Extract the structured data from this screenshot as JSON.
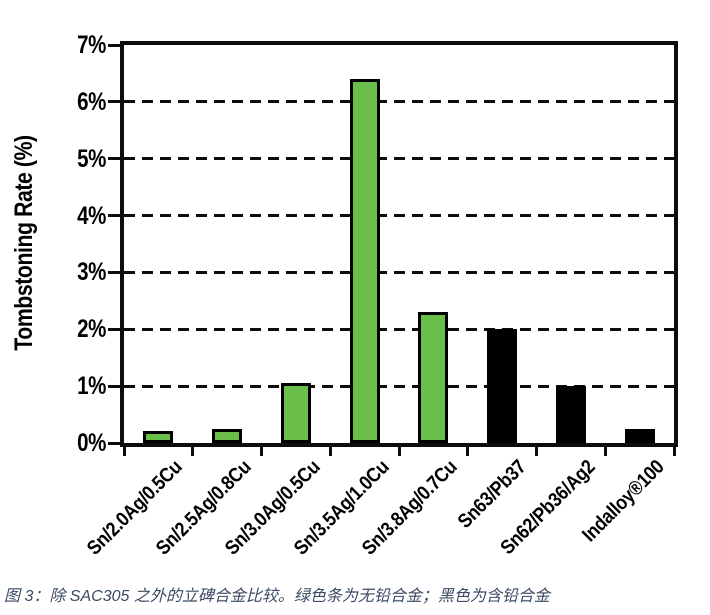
{
  "figure_caption": "图 3：除 SAC305 之外的立碑合金比较。绿色条为无铅合金；黑色为含铅合金",
  "chart_data": {
    "type": "bar",
    "title": "",
    "xlabel": "",
    "ylabel": "Tombstoning Rate (%)",
    "ylim": [
      0,
      7
    ],
    "y_tick_labels": [
      "0%",
      "1%",
      "2%",
      "3%",
      "4%",
      "5%",
      "6%",
      "7%"
    ],
    "grid": "horizontal dashed black lines at each 1% level, solid black frame around plot",
    "legend": "none (color-coded bars; caption explains: green = lead-free alloys, black = leaded alloys)",
    "categories": [
      "Sn/2.0Ag/0.5Cu",
      "Sn/2.5Ag/0.8Cu",
      "Sn/3.0Ag/0.5Cu",
      "Sn/3.5Ag/1.0Cu",
      "Sn/3.8Ag/0.7Cu",
      "Sn63/Pb37",
      "Sn62/Pb36/Ag2",
      "Indalloy®100"
    ],
    "values": [
      0.22,
      0.24,
      1.05,
      6.4,
      2.3,
      2.0,
      1.0,
      0.25
    ],
    "bar_groups": [
      "lead_free",
      "lead_free",
      "lead_free",
      "lead_free",
      "lead_free",
      "leaded",
      "leaded",
      "leaded"
    ],
    "colors": {
      "lead_free": "#6abf4b",
      "leaded": "#000000",
      "axis": "#0d0d0d",
      "caption_text": "#3a4a63"
    }
  }
}
